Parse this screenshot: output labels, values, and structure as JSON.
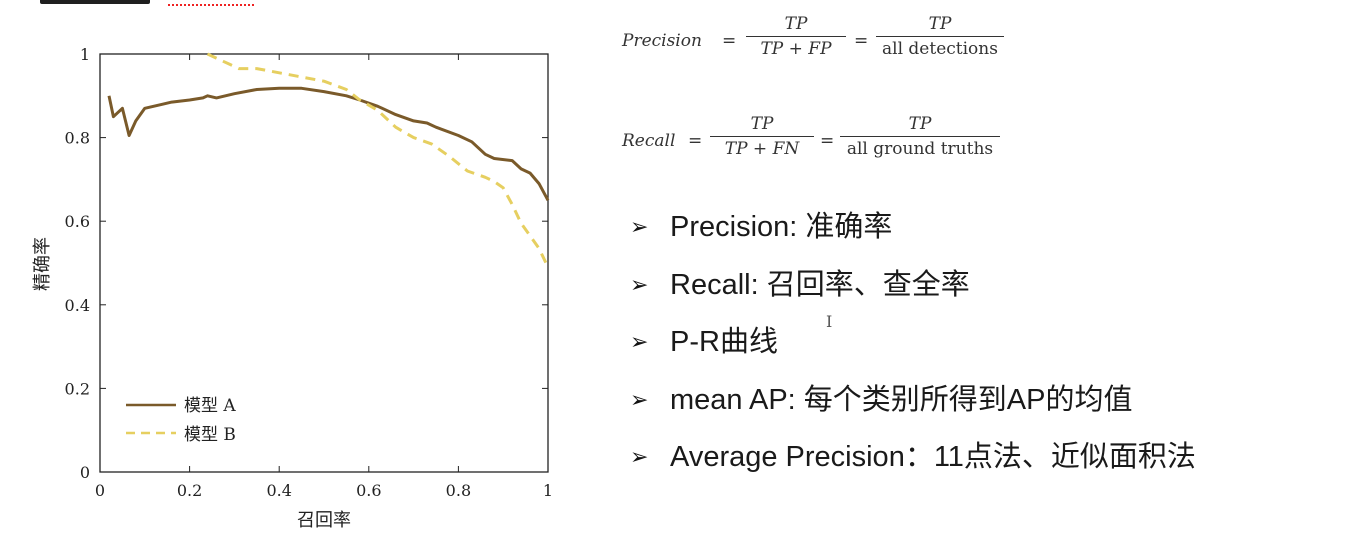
{
  "chart_data": {
    "type": "line",
    "xlabel": "召回率",
    "ylabel": "精确率",
    "xlim": [
      0,
      1
    ],
    "ylim": [
      0,
      1
    ],
    "xticks": [
      "0",
      "0.2",
      "0.4",
      "0.6",
      "0.8",
      "1"
    ],
    "yticks": [
      "0",
      "0.2",
      "0.4",
      "0.6",
      "0.8",
      "1"
    ],
    "grid": false,
    "legend_position": "bottom-left",
    "series": [
      {
        "name": "模型 A",
        "style": "solid",
        "color": "#7a5a2a",
        "points": [
          [
            0.02,
            0.9
          ],
          [
            0.03,
            0.85
          ],
          [
            0.05,
            0.87
          ],
          [
            0.065,
            0.805
          ],
          [
            0.08,
            0.84
          ],
          [
            0.1,
            0.87
          ],
          [
            0.14,
            0.88
          ],
          [
            0.16,
            0.885
          ],
          [
            0.2,
            0.89
          ],
          [
            0.23,
            0.895
          ],
          [
            0.24,
            0.9
          ],
          [
            0.26,
            0.895
          ],
          [
            0.3,
            0.905
          ],
          [
            0.35,
            0.915
          ],
          [
            0.4,
            0.918
          ],
          [
            0.45,
            0.918
          ],
          [
            0.5,
            0.91
          ],
          [
            0.55,
            0.9
          ],
          [
            0.58,
            0.89
          ],
          [
            0.62,
            0.875
          ],
          [
            0.66,
            0.855
          ],
          [
            0.7,
            0.84
          ],
          [
            0.73,
            0.835
          ],
          [
            0.75,
            0.825
          ],
          [
            0.8,
            0.805
          ],
          [
            0.83,
            0.79
          ],
          [
            0.86,
            0.76
          ],
          [
            0.88,
            0.75
          ],
          [
            0.92,
            0.745
          ],
          [
            0.94,
            0.725
          ],
          [
            0.96,
            0.715
          ],
          [
            0.98,
            0.69
          ],
          [
            1.0,
            0.65
          ]
        ]
      },
      {
        "name": "模型 B",
        "style": "dashed",
        "color": "#e6cf60",
        "points": [
          [
            0.24,
            1.0
          ],
          [
            0.27,
            0.985
          ],
          [
            0.29,
            0.975
          ],
          [
            0.31,
            0.965
          ],
          [
            0.35,
            0.965
          ],
          [
            0.4,
            0.955
          ],
          [
            0.45,
            0.945
          ],
          [
            0.5,
            0.935
          ],
          [
            0.55,
            0.915
          ],
          [
            0.58,
            0.89
          ],
          [
            0.62,
            0.865
          ],
          [
            0.66,
            0.825
          ],
          [
            0.7,
            0.8
          ],
          [
            0.74,
            0.785
          ],
          [
            0.78,
            0.755
          ],
          [
            0.82,
            0.72
          ],
          [
            0.86,
            0.705
          ],
          [
            0.88,
            0.695
          ],
          [
            0.9,
            0.68
          ],
          [
            0.92,
            0.64
          ],
          [
            0.94,
            0.595
          ],
          [
            0.96,
            0.565
          ],
          [
            0.98,
            0.535
          ],
          [
            1.0,
            0.49
          ]
        ]
      }
    ]
  },
  "formulas": {
    "precision": {
      "lhs": "Precision",
      "frac1_num": "TP",
      "frac1_den": "TP + FP",
      "frac2_num": "TP",
      "frac2_den": "all detections"
    },
    "recall": {
      "lhs": "Recall",
      "frac1_num": "TP",
      "frac1_den": "TP + FN",
      "frac2_num": "TP",
      "frac2_den": "all ground truths"
    },
    "equals": "="
  },
  "bullets": [
    "Precision: 准确率",
    "Recall: 召回率、查全率",
    "P-R曲线",
    "mean AP: 每个类别所得到AP的均值",
    "Average Precision：11点法、近似面积法"
  ],
  "bullet_icon": "arrow-bullet-icon",
  "cursor_glyph": "I"
}
